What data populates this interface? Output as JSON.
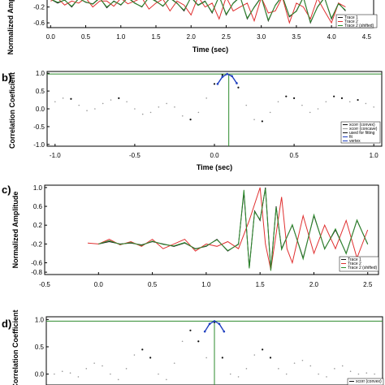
{
  "chart_data": [
    {
      "panel_label": "",
      "type": "line",
      "xlabel": "Time (sec)",
      "ylabel": "Normalized Amplitude",
      "xlim": [
        -0.05,
        4.6
      ],
      "ylim": [
        -0.72,
        0.1
      ],
      "xticks": [
        "0.0",
        "0.5",
        "1.0",
        "1.5",
        "2.0",
        "2.5",
        "3.0",
        "3.5",
        "4.0",
        "4.5"
      ],
      "yticks": [
        "-0.2",
        "-0.6"
      ],
      "legend": [
        "Trace 1",
        "Trace 2",
        "Trace 2 (shifted)"
      ],
      "legend_position": "bottom-right",
      "series": [
        {
          "name": "Trace 1",
          "color": "#1a1a1a",
          "x": [
            0,
            0.1,
            0.2,
            0.3,
            0.4,
            0.5,
            0.6,
            0.7,
            0.8,
            0.9,
            1.0,
            1.1,
            1.2,
            1.3,
            1.4,
            1.5,
            1.6,
            1.7,
            1.8,
            1.9,
            2.0,
            2.1,
            2.2,
            2.3,
            2.4,
            2.5,
            2.6,
            2.7,
            2.8,
            2.9,
            3.0,
            3.1,
            3.2,
            3.3,
            3.4,
            3.5,
            3.6,
            3.7,
            3.8,
            3.9,
            4.0,
            4.1,
            4.2
          ],
          "y": [
            0.0,
            -0.1,
            -0.02,
            -0.2,
            0.02,
            -0.08,
            -0.12,
            0.03,
            -0.22,
            -0.05,
            -0.15,
            0.04,
            -0.1,
            -0.2,
            0.05,
            -0.05,
            -0.18,
            0.03,
            -0.1,
            -0.3,
            0.05,
            -0.15,
            -0.05,
            -0.35,
            0.08,
            -0.4,
            -0.1,
            0.06,
            -0.5,
            -0.2,
            0.05,
            -0.55,
            -0.15,
            0.08,
            -0.45,
            -0.3,
            0.05,
            -0.6,
            -0.2,
            0.04,
            -0.5,
            -0.1,
            -0.3
          ]
        },
        {
          "name": "Trace 2",
          "color": "#e03030",
          "x": [
            0,
            0.1,
            0.2,
            0.3,
            0.4,
            0.5,
            0.6,
            0.7,
            0.8,
            0.9,
            1.0,
            1.1,
            1.2,
            1.3,
            1.4,
            1.5,
            1.6,
            1.7,
            1.8,
            1.9,
            2.0,
            2.1,
            2.2,
            2.3,
            2.4,
            2.5,
            2.6,
            2.7,
            2.8,
            2.9,
            3.0,
            3.1,
            3.2,
            3.3,
            3.4,
            3.5,
            3.6,
            3.7,
            3.8,
            3.9,
            4.0,
            4.1,
            4.2
          ],
          "y": [
            -0.05,
            0.02,
            -0.15,
            -0.05,
            -0.1,
            0.03,
            -0.2,
            -0.05,
            -0.05,
            -0.18,
            0.02,
            -0.12,
            -0.05,
            0.03,
            -0.25,
            -0.1,
            0.0,
            -0.3,
            -0.05,
            -0.15,
            -0.4,
            0.06,
            -0.2,
            -0.1,
            -0.5,
            0.05,
            -0.3,
            -0.2,
            -0.1,
            -0.55,
            0.04,
            -0.35,
            -0.3,
            0.05,
            -0.6,
            -0.1,
            -0.2,
            -0.5,
            0.02,
            -0.3,
            -0.6,
            -0.1,
            -0.2
          ]
        },
        {
          "name": "Trace 2 (shifted)",
          "color": "#2e8b2e",
          "x": [
            0,
            0.1,
            0.2,
            0.3,
            0.4,
            0.5,
            0.6,
            0.7,
            0.8,
            0.9,
            1.0,
            1.1,
            1.2,
            1.3,
            1.4,
            1.5,
            1.6,
            1.7,
            1.8,
            1.9,
            2.0,
            2.1,
            2.2,
            2.3,
            2.4,
            2.5,
            2.6,
            2.7,
            2.8,
            2.9,
            3.0,
            3.1,
            3.2,
            3.3,
            3.4,
            3.5,
            3.6,
            3.7,
            3.8,
            3.9,
            4.0,
            4.1,
            4.2
          ],
          "y": [
            0.0,
            -0.08,
            -0.03,
            -0.18,
            0.01,
            -0.07,
            -0.13,
            0.02,
            -0.2,
            -0.06,
            -0.14,
            0.03,
            -0.11,
            -0.19,
            0.04,
            -0.06,
            -0.17,
            0.02,
            -0.11,
            -0.28,
            0.04,
            -0.16,
            -0.06,
            -0.33,
            0.07,
            -0.38,
            -0.11,
            0.05,
            -0.48,
            -0.21,
            0.04,
            -0.53,
            -0.16,
            0.07,
            -0.43,
            -0.31,
            0.04,
            -0.58,
            -0.21,
            0.03,
            -0.48,
            -0.12,
            -0.28
          ]
        }
      ]
    },
    {
      "panel_label": "b)",
      "type": "scatter",
      "xlabel": "Time (sec)",
      "ylabel": "Correlation Coeficient",
      "xlim": [
        -1.05,
        1.05
      ],
      "ylim": [
        -1.05,
        1.05
      ],
      "xticks": [
        "-1.0",
        "-0.5",
        "0.0",
        "0.5",
        "1.0"
      ],
      "yticks": [
        "1.0",
        "0.5",
        "0.0",
        "-0.5",
        "-1.0"
      ],
      "hline": 0.98,
      "vline": 0.09,
      "legend": [
        "xcorr (convex)",
        "xcorr (concave)",
        "used for fitting",
        "fit",
        "vertex"
      ],
      "legend_position": "bottom-right",
      "series": [
        {
          "name": "xcorr",
          "color": "#888888",
          "x": [
            -1.0,
            -0.95,
            -0.9,
            -0.85,
            -0.8,
            -0.75,
            -0.7,
            -0.65,
            -0.6,
            -0.55,
            -0.5,
            -0.45,
            -0.4,
            -0.35,
            -0.3,
            -0.25,
            -0.2,
            -0.15,
            -0.1,
            -0.05,
            0.0,
            0.05,
            0.1,
            0.15,
            0.2,
            0.25,
            0.3,
            0.35,
            0.4,
            0.45,
            0.5,
            0.55,
            0.6,
            0.65,
            0.7,
            0.75,
            0.8,
            0.85,
            0.9,
            0.95,
            1.0
          ],
          "y": [
            0.2,
            0.3,
            0.28,
            0.1,
            -0.05,
            0.0,
            0.15,
            0.25,
            0.3,
            0.2,
            0.0,
            -0.15,
            -0.1,
            0.05,
            0.15,
            0.05,
            -0.2,
            -0.3,
            -0.1,
            0.3,
            0.7,
            0.95,
            0.95,
            0.6,
            0.1,
            -0.3,
            -0.35,
            -0.1,
            0.2,
            0.35,
            0.3,
            0.1,
            -0.1,
            0.0,
            0.2,
            0.35,
            0.3,
            0.2,
            0.25,
            0.15,
            0.05
          ]
        },
        {
          "name": "fit",
          "color": "#1f3fbf",
          "x": [
            0.02,
            0.05,
            0.08,
            0.11,
            0.14
          ],
          "y": [
            0.7,
            0.9,
            0.98,
            0.92,
            0.72
          ]
        }
      ]
    },
    {
      "panel_label": "c)",
      "type": "line",
      "xlabel": "",
      "ylabel": "Normalized Amplitude",
      "xlim": [
        -0.5,
        2.6
      ],
      "ylim": [
        -0.85,
        1.05
      ],
      "xticks": [
        "-0.5",
        "0.0",
        "0.5",
        "1.0",
        "1.5",
        "2.0",
        "2.5"
      ],
      "yticks": [
        "1.0",
        "0.6",
        "0.2",
        "-0.2",
        "-0.6",
        "-0.8"
      ],
      "legend": [
        "Trace 1",
        "Trace 2",
        "Trace 2 (shifted)"
      ],
      "legend_position": "bottom-right",
      "series": [
        {
          "name": "Trace 1",
          "color": "#1a1a1a",
          "x": [
            0.0,
            0.1,
            0.2,
            0.3,
            0.4,
            0.5,
            0.6,
            0.7,
            0.8,
            0.9,
            1.0,
            1.1,
            1.2,
            1.3,
            1.35,
            1.4,
            1.45,
            1.5,
            1.55,
            1.6,
            1.65,
            1.7,
            1.8,
            1.9,
            2.0,
            2.1,
            2.2,
            2.3,
            2.4,
            2.5
          ],
          "y": [
            -0.2,
            -0.15,
            -0.2,
            -0.18,
            -0.22,
            -0.15,
            -0.2,
            -0.25,
            -0.18,
            -0.3,
            -0.25,
            -0.1,
            -0.35,
            -0.2,
            0.9,
            -0.7,
            0.5,
            0.3,
            1.0,
            -0.75,
            0.6,
            -0.3,
            0.2,
            -0.5,
            0.4,
            -0.3,
            0.1,
            -0.4,
            0.3,
            -0.2
          ]
        },
        {
          "name": "Trace 2",
          "color": "#e03030",
          "x": [
            -0.1,
            0.0,
            0.1,
            0.2,
            0.3,
            0.4,
            0.5,
            0.6,
            0.7,
            0.8,
            0.9,
            1.0,
            1.1,
            1.2,
            1.3,
            1.4,
            1.5,
            1.55,
            1.6,
            1.7,
            1.75,
            1.8,
            1.9,
            2.0,
            2.1,
            2.2,
            2.3,
            2.4,
            2.5
          ],
          "y": [
            -0.18,
            -0.2,
            -0.1,
            -0.22,
            -0.15,
            -0.25,
            -0.1,
            -0.3,
            -0.2,
            -0.1,
            -0.35,
            -0.2,
            -0.25,
            -0.15,
            -0.3,
            0.3,
            1.0,
            -0.2,
            -0.75,
            0.8,
            -0.3,
            -0.6,
            0.4,
            -0.4,
            0.2,
            -0.3,
            0.3,
            -0.5,
            0.1
          ]
        },
        {
          "name": "Trace 2 (shifted)",
          "color": "#2e8b2e",
          "x": [
            0.0,
            0.1,
            0.2,
            0.3,
            0.4,
            0.5,
            0.6,
            0.7,
            0.8,
            0.9,
            1.0,
            1.1,
            1.2,
            1.3,
            1.35,
            1.4,
            1.45,
            1.5,
            1.55,
            1.6,
            1.65,
            1.7,
            1.8,
            1.9,
            2.0,
            2.1,
            2.2,
            2.3,
            2.4,
            2.5
          ],
          "y": [
            -0.2,
            -0.13,
            -0.21,
            -0.17,
            -0.23,
            -0.14,
            -0.21,
            -0.24,
            -0.17,
            -0.31,
            -0.24,
            -0.11,
            -0.34,
            -0.21,
            0.95,
            -0.72,
            0.48,
            0.32,
            0.98,
            -0.77,
            0.58,
            -0.32,
            0.21,
            -0.52,
            0.42,
            -0.31,
            0.12,
            -0.41,
            0.31,
            -0.21
          ]
        }
      ]
    },
    {
      "panel_label": "d)",
      "type": "scatter",
      "xlabel": "",
      "ylabel": "Correlation Coefficient",
      "xlim": [
        -1.05,
        1.05
      ],
      "ylim": [
        -0.2,
        1.05
      ],
      "xticks": [],
      "yticks": [
        "1.0",
        "0.5",
        "0.0"
      ],
      "hline": 0.97,
      "vline": 0.0,
      "legend": [
        "xcorr (convex)"
      ],
      "legend_position": "bottom-right",
      "series": [
        {
          "name": "xcorr",
          "color": "#888888",
          "x": [
            -1.0,
            -0.95,
            -0.9,
            -0.85,
            -0.8,
            -0.75,
            -0.7,
            -0.65,
            -0.6,
            -0.55,
            -0.5,
            -0.45,
            -0.4,
            -0.35,
            -0.3,
            -0.25,
            -0.2,
            -0.15,
            -0.1,
            -0.05,
            0.0,
            0.05,
            0.1,
            0.15,
            0.2,
            0.25,
            0.3,
            0.35,
            0.4,
            0.45,
            0.5,
            0.55,
            0.6,
            0.65,
            0.7,
            0.75,
            0.8,
            0.85,
            0.9,
            0.95,
            1.0
          ],
          "y": [
            0.0,
            0.05,
            0.02,
            -0.05,
            0.1,
            0.2,
            0.15,
            0.0,
            -0.1,
            0.1,
            0.35,
            0.45,
            0.3,
            0.0,
            -0.1,
            0.2,
            0.6,
            0.8,
            0.6,
            0.3,
            0.95,
            0.3,
            0.0,
            -0.05,
            0.1,
            0.35,
            0.45,
            0.3,
            0.1,
            0.0,
            0.2,
            0.25,
            0.15,
            0.0,
            -0.05,
            0.1,
            0.15,
            0.05,
            0.0,
            0.02,
            0.0
          ]
        },
        {
          "name": "fit",
          "color": "#1f3fbf",
          "x": [
            -0.06,
            -0.03,
            0.0,
            0.03,
            0.06
          ],
          "y": [
            0.78,
            0.92,
            0.97,
            0.92,
            0.78
          ]
        }
      ]
    }
  ]
}
